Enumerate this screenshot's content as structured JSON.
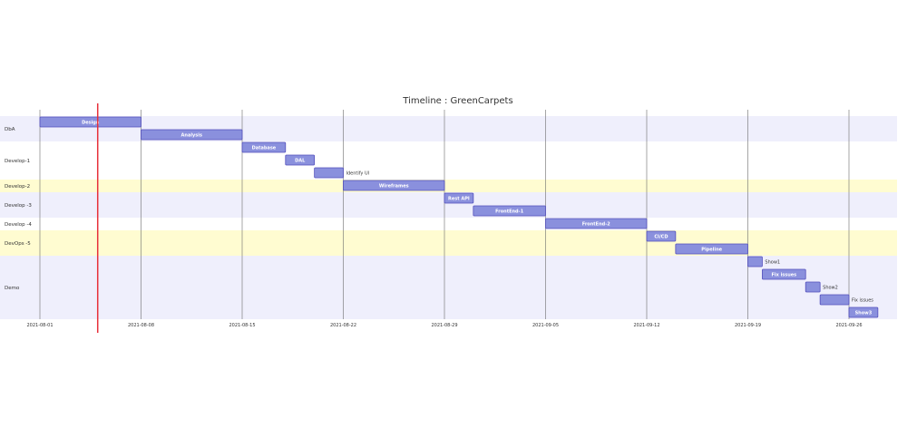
{
  "chart_data": {
    "type": "gantt",
    "title": "Timeline : GreenCarpets",
    "today": "2021-08-05",
    "x_ticks": [
      "2021-08-01",
      "2021-08-08",
      "2021-08-15",
      "2021-08-22",
      "2021-08-29",
      "2021-09-05",
      "2021-09-12",
      "2021-09-19",
      "2021-09-26"
    ],
    "sections": [
      {
        "name": "DbA",
        "tasks": [
          {
            "name": "Design",
            "start": "2021-08-01",
            "end": "2021-08-08"
          },
          {
            "name": "Analysis",
            "start": "2021-08-08",
            "end": "2021-08-15"
          }
        ]
      },
      {
        "name": "Develop-1",
        "tasks": [
          {
            "name": "Database",
            "start": "2021-08-15",
            "end": "2021-08-18"
          },
          {
            "name": "DAL",
            "start": "2021-08-18",
            "end": "2021-08-20"
          },
          {
            "name": "Identify UI",
            "start": "2021-08-20",
            "end": "2021-08-22"
          }
        ]
      },
      {
        "name": "Develop-2",
        "tasks": [
          {
            "name": "Wireframes",
            "start": "2021-08-22",
            "end": "2021-08-29"
          }
        ]
      },
      {
        "name": "Develop -3",
        "tasks": [
          {
            "name": "Rest API",
            "start": "2021-08-29",
            "end": "2021-08-31"
          },
          {
            "name": "FrontEnd-1",
            "start": "2021-08-31",
            "end": "2021-09-05"
          }
        ]
      },
      {
        "name": "Develop -4",
        "tasks": [
          {
            "name": "FrontEnd-2",
            "start": "2021-09-05",
            "end": "2021-09-12"
          }
        ]
      },
      {
        "name": "DevOps -5",
        "tasks": [
          {
            "name": "CI/CD",
            "start": "2021-09-12",
            "end": "2021-09-14"
          },
          {
            "name": "Pipeline",
            "start": "2021-09-14",
            "end": "2021-09-19"
          }
        ]
      },
      {
        "name": "Demo",
        "tasks": [
          {
            "name": "Show1",
            "start": "2021-09-19",
            "end": "2021-09-20"
          },
          {
            "name": "Fix issues",
            "start": "2021-09-20",
            "end": "2021-09-23"
          },
          {
            "name": "Show2",
            "start": "2021-09-23",
            "end": "2021-09-24"
          },
          {
            "name": "Fix issues",
            "start": "2021-09-24",
            "end": "2021-09-26"
          },
          {
            "name": "Show3",
            "start": "2021-09-26",
            "end": "2021-09-28"
          }
        ]
      }
    ],
    "colors": {
      "task_fill": "#8a90dd",
      "task_stroke": "#534fbc",
      "section_odd": "#efeffc",
      "section_even": "#ffffff",
      "section_alt": "#fffcd1",
      "today_line": "#e8303a",
      "grid": "#6c6c6c"
    }
  }
}
